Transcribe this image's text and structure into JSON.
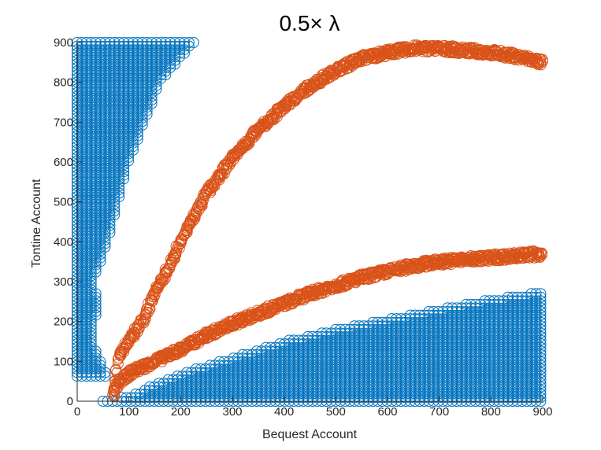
{
  "chart_data": {
    "type": "scatter",
    "title": "0.5× λ",
    "xlabel": "Bequest Account",
    "ylabel": "Tontine Account",
    "xlim": [
      0,
      900
    ],
    "ylim": [
      0,
      900
    ],
    "xticks": [
      0,
      100,
      200,
      300,
      400,
      500,
      600,
      700,
      800,
      900
    ],
    "yticks": [
      0,
      100,
      200,
      300,
      400,
      500,
      600,
      700,
      800,
      900
    ],
    "grid": false,
    "legend": "none",
    "marker": "open-circle",
    "series": [
      {
        "color": "#0072BD",
        "regions": [
          {
            "shape": "upper-left-wedge",
            "y_range": [
              60,
              900
            ],
            "x_max_at_y": [
              [
                60,
                60
              ],
              [
                100,
                45
              ],
              [
                150,
                30
              ],
              [
                250,
                40
              ],
              [
                300,
                30
              ],
              [
                400,
                60
              ],
              [
                500,
                80
              ],
              [
                600,
                100
              ],
              [
                700,
                130
              ],
              [
                800,
                160
              ],
              [
                900,
                225
              ]
            ]
          },
          {
            "shape": "lower-right-wedge",
            "x_range": [
              50,
              900
            ],
            "y_max_at_x": [
              [
                60,
                0
              ],
              [
                110,
                20
              ],
              [
                200,
                70
              ],
              [
                300,
                110
              ],
              [
                400,
                150
              ],
              [
                500,
                180
              ],
              [
                600,
                205
              ],
              [
                700,
                230
              ],
              [
                800,
                255
              ],
              [
                900,
                275
              ]
            ]
          }
        ]
      },
      {
        "color": "#D95319",
        "curves": [
          {
            "name": "",
            "x": [
              70,
              80,
              100,
              125,
              150,
              175,
              200,
              250,
              300,
              350,
              400,
              450,
              500,
              550,
              600,
              650,
              700,
              750,
              800,
              850,
              900
            ],
            "y": [
              20,
              110,
              150,
              200,
              270,
              330,
              400,
              520,
              610,
              680,
              740,
              790,
              830,
              860,
              875,
              885,
              885,
              880,
              875,
              865,
              850
            ]
          },
          {
            "name": "",
            "x": [
              70,
              80,
              100,
              150,
              200,
              250,
              300,
              350,
              400,
              450,
              500,
              550,
              600,
              650,
              700,
              750,
              800,
              850,
              900
            ],
            "y": [
              20,
              45,
              70,
              100,
              130,
              165,
              195,
              220,
              245,
              270,
              290,
              310,
              325,
              340,
              350,
              355,
              360,
              365,
              370
            ]
          }
        ]
      }
    ]
  }
}
